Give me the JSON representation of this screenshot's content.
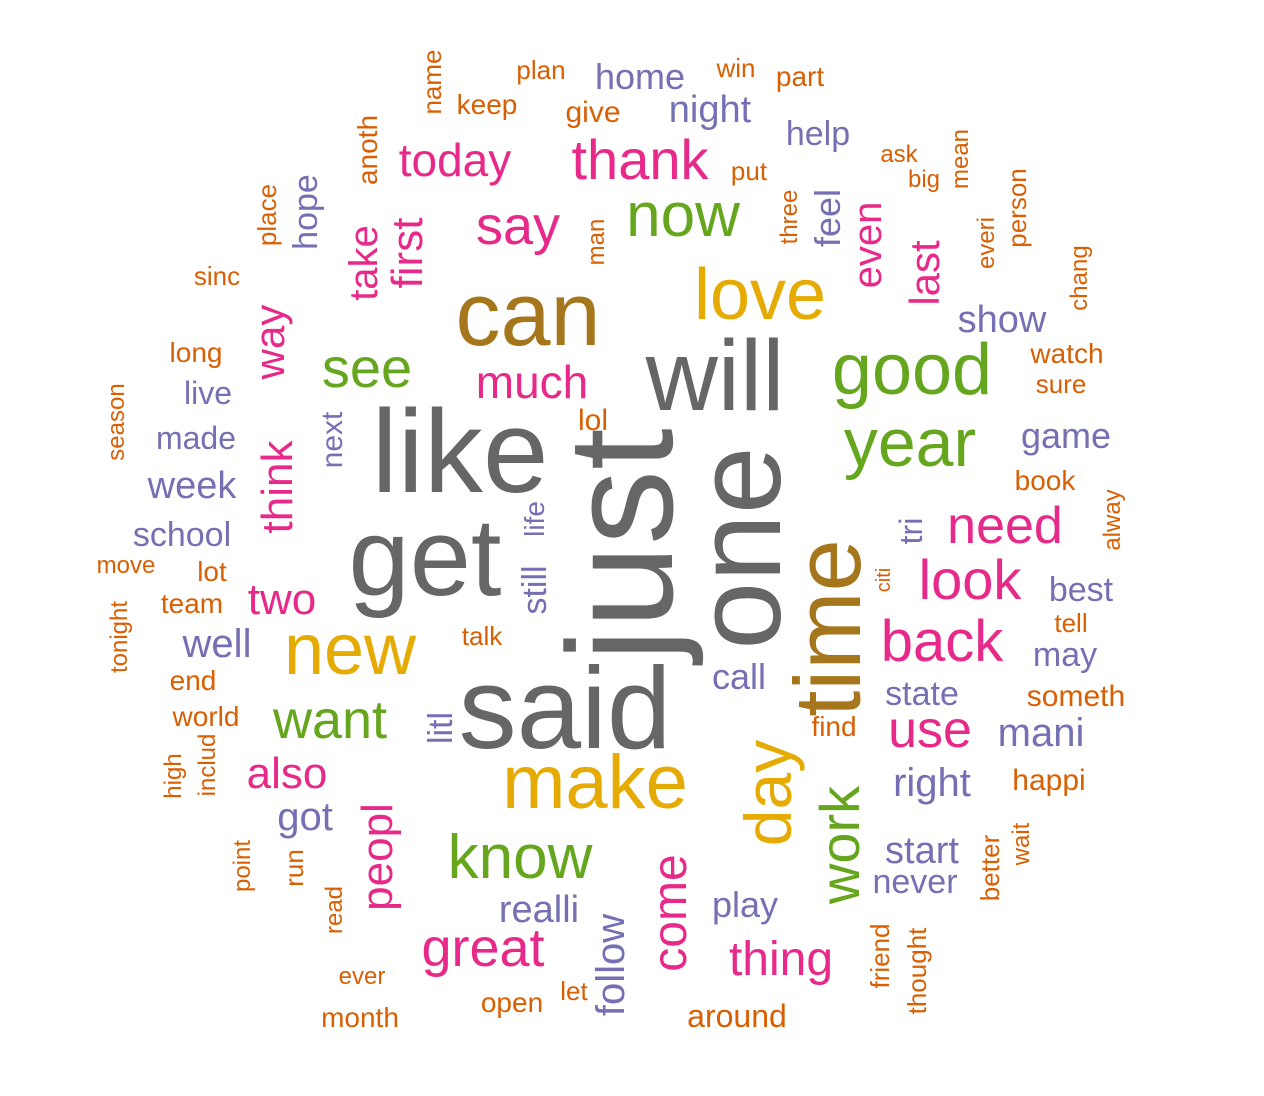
{
  "palette": {
    "gray": "#666666",
    "brown": "#a6761d",
    "gold": "#e6ab02",
    "green": "#66a61e",
    "magenta": "#e7298a",
    "purple": "#7570b3",
    "orange": "#d95f02"
  },
  "words": [
    {
      "text": "just",
      "color": "gray"
    },
    {
      "text": "said",
      "color": "gray"
    },
    {
      "text": "like",
      "color": "gray"
    },
    {
      "text": "one",
      "color": "gray"
    },
    {
      "text": "will",
      "color": "gray"
    },
    {
      "text": "get",
      "color": "gray"
    },
    {
      "text": "can",
      "color": "brown"
    },
    {
      "text": "time",
      "color": "brown"
    },
    {
      "text": "make",
      "color": "gold"
    },
    {
      "text": "love",
      "color": "gold"
    },
    {
      "text": "new",
      "color": "gold"
    },
    {
      "text": "day",
      "color": "gold"
    },
    {
      "text": "good",
      "color": "green"
    },
    {
      "text": "year",
      "color": "green"
    },
    {
      "text": "now",
      "color": "green"
    },
    {
      "text": "see",
      "color": "green"
    },
    {
      "text": "want",
      "color": "green"
    },
    {
      "text": "know",
      "color": "green"
    },
    {
      "text": "work",
      "color": "green"
    },
    {
      "text": "thank",
      "color": "magenta"
    },
    {
      "text": "say",
      "color": "magenta"
    },
    {
      "text": "today",
      "color": "magenta"
    },
    {
      "text": "first",
      "color": "magenta"
    },
    {
      "text": "take",
      "color": "magenta"
    },
    {
      "text": "much",
      "color": "magenta"
    },
    {
      "text": "way",
      "color": "magenta"
    },
    {
      "text": "think",
      "color": "magenta"
    },
    {
      "text": "even",
      "color": "magenta"
    },
    {
      "text": "last",
      "color": "magenta"
    },
    {
      "text": "need",
      "color": "magenta"
    },
    {
      "text": "look",
      "color": "magenta"
    },
    {
      "text": "back",
      "color": "magenta"
    },
    {
      "text": "use",
      "color": "magenta"
    },
    {
      "text": "two",
      "color": "magenta"
    },
    {
      "text": "also",
      "color": "magenta"
    },
    {
      "text": "peopl",
      "color": "magenta"
    },
    {
      "text": "great",
      "color": "magenta"
    },
    {
      "text": "come",
      "color": "magenta"
    },
    {
      "text": "thing",
      "color": "magenta"
    },
    {
      "text": "home",
      "color": "purple"
    },
    {
      "text": "night",
      "color": "purple"
    },
    {
      "text": "help",
      "color": "purple"
    },
    {
      "text": "feel",
      "color": "purple"
    },
    {
      "text": "hope",
      "color": "purple"
    },
    {
      "text": "show",
      "color": "purple"
    },
    {
      "text": "live",
      "color": "purple"
    },
    {
      "text": "made",
      "color": "purple"
    },
    {
      "text": "next",
      "color": "purple"
    },
    {
      "text": "week",
      "color": "purple"
    },
    {
      "text": "school",
      "color": "purple"
    },
    {
      "text": "life",
      "color": "purple"
    },
    {
      "text": "still",
      "color": "purple"
    },
    {
      "text": "game",
      "color": "purple"
    },
    {
      "text": "tri",
      "color": "purple"
    },
    {
      "text": "best",
      "color": "purple"
    },
    {
      "text": "may",
      "color": "purple"
    },
    {
      "text": "well",
      "color": "purple"
    },
    {
      "text": "call",
      "color": "purple"
    },
    {
      "text": "state",
      "color": "purple"
    },
    {
      "text": "litl",
      "color": "purple"
    },
    {
      "text": "mani",
      "color": "purple"
    },
    {
      "text": "right",
      "color": "purple"
    },
    {
      "text": "got",
      "color": "purple"
    },
    {
      "text": "start",
      "color": "purple"
    },
    {
      "text": "never",
      "color": "purple"
    },
    {
      "text": "realli",
      "color": "purple"
    },
    {
      "text": "play",
      "color": "purple"
    },
    {
      "text": "follow",
      "color": "purple"
    },
    {
      "text": "name",
      "color": "orange"
    },
    {
      "text": "plan",
      "color": "orange"
    },
    {
      "text": "win",
      "color": "orange"
    },
    {
      "text": "part",
      "color": "orange"
    },
    {
      "text": "keep",
      "color": "orange"
    },
    {
      "text": "give",
      "color": "orange"
    },
    {
      "text": "anoth",
      "color": "orange"
    },
    {
      "text": "ask",
      "color": "orange"
    },
    {
      "text": "mean",
      "color": "orange"
    },
    {
      "text": "put",
      "color": "orange"
    },
    {
      "text": "big",
      "color": "orange"
    },
    {
      "text": "person",
      "color": "orange"
    },
    {
      "text": "three",
      "color": "orange"
    },
    {
      "text": "man",
      "color": "orange"
    },
    {
      "text": "everi",
      "color": "orange"
    },
    {
      "text": "place",
      "color": "orange"
    },
    {
      "text": "sinc",
      "color": "orange"
    },
    {
      "text": "chang",
      "color": "orange"
    },
    {
      "text": "long",
      "color": "orange"
    },
    {
      "text": "watch",
      "color": "orange"
    },
    {
      "text": "sure",
      "color": "orange"
    },
    {
      "text": "season",
      "color": "orange"
    },
    {
      "text": "lol",
      "color": "orange"
    },
    {
      "text": "book",
      "color": "orange"
    },
    {
      "text": "alway",
      "color": "orange"
    },
    {
      "text": "move",
      "color": "orange"
    },
    {
      "text": "lot",
      "color": "orange"
    },
    {
      "text": "citi",
      "color": "orange"
    },
    {
      "text": "team",
      "color": "orange"
    },
    {
      "text": "tonight",
      "color": "orange"
    },
    {
      "text": "talk",
      "color": "orange"
    },
    {
      "text": "tell",
      "color": "orange"
    },
    {
      "text": "end",
      "color": "orange"
    },
    {
      "text": "someth",
      "color": "orange"
    },
    {
      "text": "world",
      "color": "orange"
    },
    {
      "text": "find",
      "color": "orange"
    },
    {
      "text": "high",
      "color": "orange"
    },
    {
      "text": "includ",
      "color": "orange"
    },
    {
      "text": "happi",
      "color": "orange"
    },
    {
      "text": "point",
      "color": "orange"
    },
    {
      "text": "run",
      "color": "orange"
    },
    {
      "text": "better",
      "color": "orange"
    },
    {
      "text": "wait",
      "color": "orange"
    },
    {
      "text": "read",
      "color": "orange"
    },
    {
      "text": "friend",
      "color": "orange"
    },
    {
      "text": "thought",
      "color": "orange"
    },
    {
      "text": "ever",
      "color": "orange"
    },
    {
      "text": "open",
      "color": "orange"
    },
    {
      "text": "let",
      "color": "orange"
    },
    {
      "text": "month",
      "color": "orange"
    },
    {
      "text": "around",
      "color": "orange"
    }
  ]
}
